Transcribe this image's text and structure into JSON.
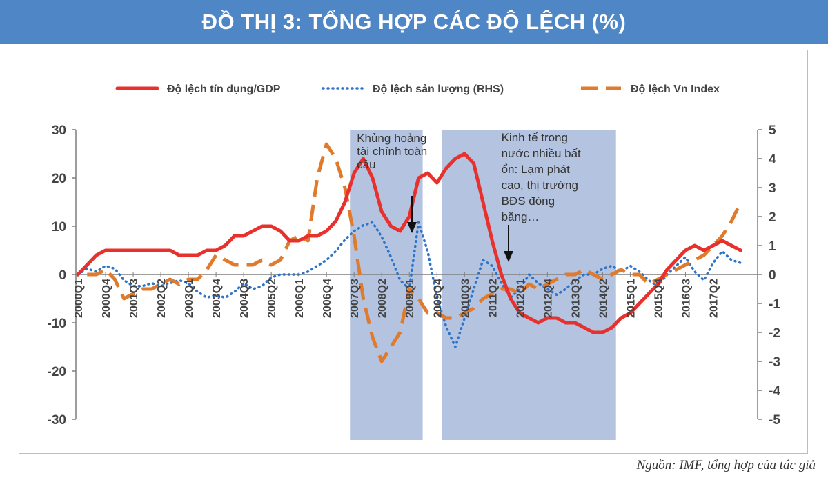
{
  "title": "ĐỒ THỊ 3: TỔNG HỢP CÁC ĐỘ LỆCH (%)",
  "source": "Nguồn: IMF, tổng hợp của tác giả",
  "chart_data": {
    "type": "line",
    "legend": [
      {
        "name": "Độ lệch tín dụng/GDP",
        "color": "#e8302c",
        "style": "solid"
      },
      {
        "name": "Độ lệch sản lượng (RHS)",
        "color": "#2e75c9",
        "style": "dotted"
      },
      {
        "name": "Độ lệch Vn Index",
        "color": "#e07a2c",
        "style": "dashed"
      }
    ],
    "legend_position": "top",
    "y_left": {
      "range": [
        -30,
        30
      ],
      "ticks": [
        30,
        20,
        10,
        0,
        -10,
        -20,
        -30
      ]
    },
    "y_right": {
      "range": [
        -5,
        5
      ],
      "ticks": [
        5,
        4,
        3,
        2,
        1,
        0,
        -1,
        -2,
        -3,
        -4,
        -5
      ]
    },
    "x_ticks": [
      "2000Q1",
      "2000Q4",
      "2001Q3",
      "2002Q2",
      "2003Q1",
      "2003Q4",
      "2004Q3",
      "2005Q2",
      "2006Q1",
      "2006Q4",
      "2007Q3",
      "2008Q2",
      "2009Q1",
      "2009Q4",
      "2010Q3",
      "2011Q2",
      "2012Q1",
      "2012Q4",
      "2013Q3",
      "2014Q2",
      "2015Q1",
      "2015Q4",
      "2016Q3",
      "2017Q2"
    ],
    "shaded_periods": [
      {
        "start": "2007Q3",
        "end": "2009Q2",
        "label": [
          "Khủng hoảng",
          "tài chính toàn",
          "cầu"
        ]
      },
      {
        "start": "2010Q1",
        "end": "2014Q3",
        "label": [
          "Kinh  tế trong",
          "nước nhiều bất",
          "ổn: Lạm phát",
          "cao, thị trường",
          "BĐS đóng",
          "băng…"
        ]
      }
    ],
    "series": [
      {
        "name": "Độ lệch tín dụng/GDP",
        "axis": "left",
        "values": [
          0,
          2,
          4,
          5,
          5,
          5,
          5,
          5,
          5,
          5,
          5,
          4,
          4,
          4,
          5,
          5,
          6,
          8,
          8,
          9,
          10,
          10,
          9,
          7,
          7,
          8,
          8,
          9,
          11,
          15,
          21,
          24,
          20,
          13,
          10,
          9,
          12,
          20,
          21,
          19,
          22,
          24,
          25,
          23,
          15,
          7,
          0,
          -5,
          -8,
          -9,
          -10,
          -9,
          -9,
          -10,
          -10,
          -11,
          -12,
          -12,
          -11,
          -9,
          -8,
          -6,
          -4,
          -2,
          1,
          3,
          5,
          6,
          5,
          6,
          7,
          6,
          5
        ]
      },
      {
        "name": "Độ lệch sản lượng (RHS)",
        "axis": "right",
        "values": [
          0,
          0.2,
          0.1,
          0.3,
          0.2,
          -0.2,
          -0.4,
          -0.4,
          -0.3,
          -0.4,
          -0.3,
          -0.2,
          -0.3,
          -0.6,
          -0.8,
          -0.7,
          -0.8,
          -0.6,
          -0.3,
          -0.5,
          -0.4,
          -0.1,
          0,
          0,
          0,
          0.1,
          0.3,
          0.5,
          0.8,
          1.2,
          1.5,
          1.7,
          1.8,
          1.3,
          0.6,
          -0.2,
          -0.5,
          1.8,
          0.8,
          -0.8,
          -1.8,
          -2.5,
          -1.5,
          -0.5,
          0.5,
          0.3,
          -0.3,
          -0.8,
          -0.5,
          0,
          -0.3,
          -0.5,
          -0.7,
          -0.5,
          -0.2,
          0,
          0,
          0.2,
          0.3,
          0.1,
          0.3,
          0.1,
          -0.2,
          -0.4,
          0,
          0.3,
          0.6,
          0.1,
          -0.2,
          0.4,
          0.8,
          0.5,
          0.4
        ]
      },
      {
        "name": "Độ lệch Vn Index",
        "axis": "left",
        "values": [
          null,
          0,
          0,
          1,
          -1,
          -5,
          -4,
          -3,
          -3,
          -2,
          -1,
          -2,
          -1,
          -1,
          1,
          4,
          3,
          2,
          2,
          2,
          3,
          2,
          3,
          7,
          8,
          7,
          20,
          27,
          24,
          18,
          8,
          -5,
          -13,
          -18,
          -15,
          -12,
          -3,
          -5,
          -8,
          -8,
          -9,
          -9,
          -8,
          -7,
          -5,
          -4,
          -3,
          -3,
          -4,
          -2,
          -3,
          -2,
          -1,
          0,
          0,
          1,
          0,
          -1,
          0,
          1,
          0,
          0,
          -2,
          -1,
          0,
          1,
          2,
          3,
          4,
          6,
          8,
          11,
          15
        ]
      }
    ]
  }
}
